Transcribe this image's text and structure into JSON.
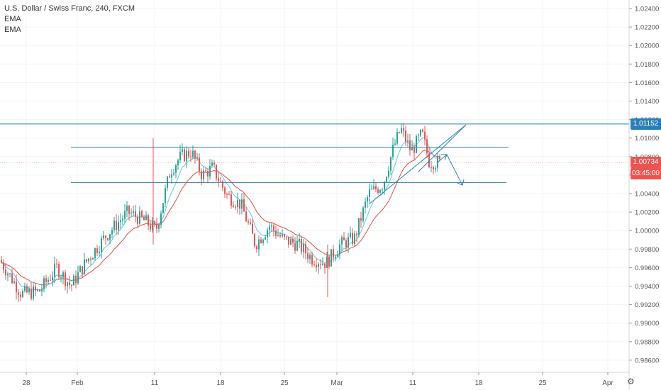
{
  "legend": {
    "title": "U.S. Dollar / Swiss Franc, 240, FXCM",
    "indicator1": "EMA",
    "indicator2": "EMA"
  },
  "price_tags": {
    "level": "1.01152",
    "last": "1.00734",
    "countdown": "03:45:00"
  },
  "colors": {
    "up": "#26a69a",
    "down": "#ef5350",
    "ema_fast": "#5fc8e6",
    "ema_slow": "#e84c3d",
    "drawing": "#2a7fb8",
    "grid": "#f0f3fa",
    "axis": "#888888"
  },
  "icons": {
    "settings": "gear-icon"
  },
  "chart_data": {
    "type": "candlestick",
    "title": "U.S. Dollar / Swiss Franc, 240, FXCM",
    "ylim": [
      0.9848,
      1.0256
    ],
    "y_ticks": [
      "1.02400",
      "1.02200",
      "1.02000",
      "1.01800",
      "1.01600",
      "1.01400",
      "1.01200",
      "1.01000",
      "1.00800",
      "1.00600",
      "1.00400",
      "1.00200",
      "1.00000",
      "0.99800",
      "0.99600",
      "0.99400",
      "0.99200",
      "0.99000",
      "0.98800",
      "0.98600"
    ],
    "x_ticks": [
      "28",
      "Feb",
      "11",
      "18",
      "25",
      "Mar",
      "11",
      "18",
      "25",
      "Apr"
    ],
    "series": [
      {
        "name": "EMA",
        "role": "fast"
      },
      {
        "name": "EMA",
        "role": "slow"
      }
    ],
    "horizontal_levels": [
      1.01152,
      1.009,
      1.0052
    ],
    "last_price": 1.00734,
    "grid": true
  }
}
